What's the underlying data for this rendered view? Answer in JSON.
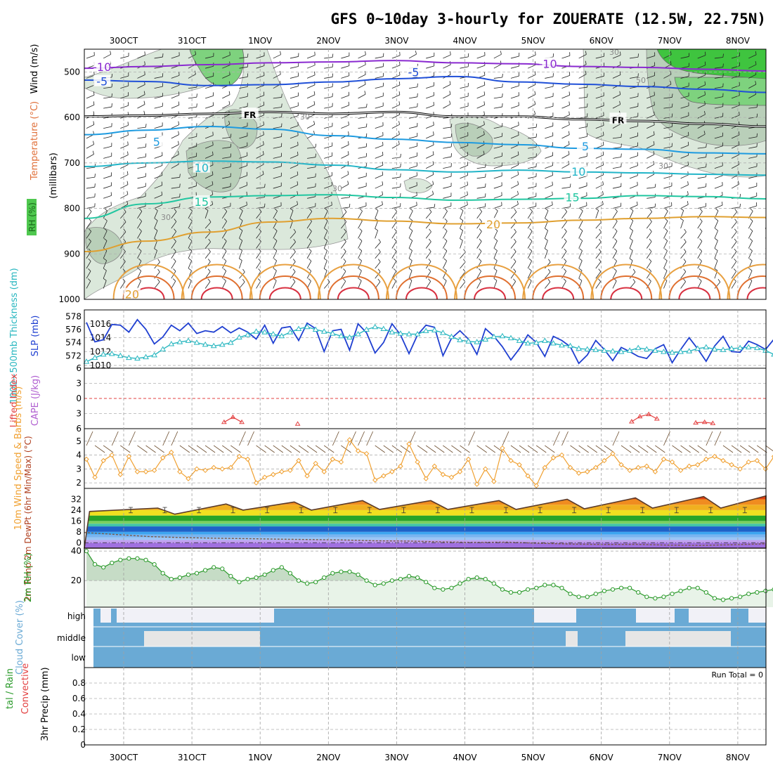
{
  "page": {
    "title": "GFS 0~10day 3-hourly for ZOUERATE (12.5W, 22.75N)",
    "date_labels": [
      "30OCT",
      "31OCT",
      "1NOV",
      "2NOV",
      "3NOV",
      "4NOV",
      "5NOV",
      "6NOV",
      "7NOV",
      "8NOV"
    ]
  },
  "colors": {
    "rh_fill": "#c6dcc6",
    "rh_dark": "#8fb08f",
    "rh_bright": "#5ccd5c",
    "slp": "#1f3fd1",
    "thickness": "#29b7c0",
    "lifted_index": "#e34040",
    "cape": "#b05fd0",
    "wind10": "#f0a030",
    "rh2m": "#2a9a2a",
    "cloud": "#6aaad5",
    "grid": "#a0a0a0"
  },
  "chart_data": [
    {
      "id": "upper_air",
      "type": "contour",
      "ylabel_parts": [
        "RH (%)",
        "Temperature (°C)",
        "Wind (m/s)"
      ],
      "ylabel_right": "(millibars)",
      "y_ticks": [
        500,
        600,
        700,
        800,
        900,
        1000
      ],
      "ylim": [
        1000,
        450
      ],
      "temperature_isotherms": [
        {
          "label": "-10",
          "levels": [
            492,
            488,
            484,
            480,
            478,
            475,
            480,
            482,
            488,
            490,
            494,
            498
          ]
        },
        {
          "label": "-5",
          "levels": [
            518,
            521,
            530,
            528,
            522,
            515,
            510,
            522,
            527,
            532,
            538,
            545
          ]
        },
        {
          "label": "FR",
          "levels": [
            598,
            596,
            592,
            588,
            592,
            588,
            598,
            598,
            604,
            608,
            614,
            620
          ]
        },
        {
          "label": "5",
          "levels": [
            638,
            628,
            620,
            626,
            640,
            648,
            655,
            660,
            668,
            670,
            678,
            680
          ]
        },
        {
          "label": "10",
          "levels": [
            708,
            700,
            696,
            698,
            705,
            715,
            720,
            716,
            720,
            722,
            725,
            727
          ]
        },
        {
          "label": "15",
          "levels": [
            822,
            790,
            775,
            772,
            770,
            776,
            782,
            780,
            778,
            772,
            774,
            779
          ]
        },
        {
          "label": "20",
          "levels": [
            895,
            872,
            852,
            830,
            822,
            828,
            834,
            832,
            826,
            822,
            818,
            820
          ]
        }
      ],
      "isotherm_labels": [
        {
          "text": "-10",
          "pos": [
            2.6,
            490
          ]
        },
        {
          "text": "-5",
          "pos": [
            2.6,
            522
          ]
        },
        {
          "text": "-5",
          "pos": [
            48.3,
            502
          ]
        },
        {
          "text": "-10",
          "pos": [
            68.0,
            483
          ]
        },
        {
          "text": "FR",
          "pos": [
            24.3,
            594
          ]
        },
        {
          "text": "FR",
          "pos": [
            78.3,
            605
          ]
        },
        {
          "text": "5",
          "pos": [
            10.6,
            655
          ]
        },
        {
          "text": "5",
          "pos": [
            73.5,
            665
          ]
        },
        {
          "text": "10",
          "pos": [
            17.2,
            712
          ]
        },
        {
          "text": "10",
          "pos": [
            72.5,
            720
          ]
        },
        {
          "text": "15",
          "pos": [
            17.2,
            787
          ]
        },
        {
          "text": "15",
          "pos": [
            71.6,
            777
          ]
        },
        {
          "text": "20",
          "pos": [
            7.0,
            990
          ]
        },
        {
          "text": "20",
          "pos": [
            60.0,
            836
          ]
        }
      ],
      "rh_contour_labels": [
        "30",
        "30",
        "30",
        "50",
        "30",
        "30"
      ]
    },
    {
      "id": "slp_thickness",
      "type": "line",
      "ylabel_left": "1000~500mb Thickness (dm)",
      "ylabel_right": "SLP (mb)",
      "y_ticks_left": [
        572,
        574,
        576,
        578
      ],
      "y_ticks_right": [
        1010,
        1012,
        1014,
        1016
      ],
      "ylim_slp": [
        1009.6,
        1018
      ],
      "series": [
        {
          "name": "SLP",
          "unit": "mb",
          "values": [
            1016.2,
            1013.4,
            1013.7,
            1015.9,
            1015.8,
            1014.8,
            1016.6,
            1015.2,
            1013.1,
            1014.1,
            1015.8,
            1015.0,
            1016.1,
            1014.6,
            1015.0,
            1014.8,
            1015.6,
            1014.7,
            1015.4,
            1014.8,
            1013.8,
            1015.8,
            1013.2,
            1015.4,
            1015.6,
            1013.6,
            1016.1,
            1015.3,
            1012.0,
            1015.0,
            1015.2,
            1012.2,
            1016.0,
            1014.7,
            1011.8,
            1013.3,
            1016.0,
            1014.4,
            1011.7,
            1014.4,
            1015.8,
            1015.5,
            1011.4,
            1013.9,
            1015.0,
            1013.8,
            1011.6,
            1015.3,
            1014.2,
            1012.7,
            1010.8,
            1012.4,
            1014.4,
            1013.3,
            1011.3,
            1014.2,
            1013.6,
            1012.7,
            1010.3,
            1011.5,
            1013.6,
            1012.3,
            1010.7,
            1012.6,
            1012.0,
            1011.3,
            1011.0,
            1012.4,
            1013.0,
            1010.4,
            1012.3,
            1014.0,
            1012.4,
            1010.6,
            1012.8,
            1014.2,
            1012.0,
            1011.9,
            1013.5,
            1013.0,
            1012.3,
            1013.8
          ]
        },
        {
          "name": "Thickness",
          "unit": "dm",
          "values": [
            571.1,
            571.7,
            572.2,
            572.3,
            572.0,
            571.7,
            571.6,
            571.8,
            572.1,
            573.0,
            573.8,
            574.1,
            574.3,
            574.0,
            573.7,
            573.5,
            573.7,
            574.0,
            574.8,
            575.2,
            575.7,
            575.6,
            575.3,
            575.0,
            575.6,
            576.1,
            576.4,
            576.0,
            575.7,
            575.4,
            575.0,
            574.8,
            575.3,
            576.0,
            576.4,
            576.1,
            575.6,
            575.4,
            575.3,
            575.3,
            575.8,
            575.9,
            575.5,
            574.9,
            574.4,
            574.2,
            574.1,
            574.5,
            574.9,
            575.0,
            574.7,
            574.3,
            573.9,
            574.0,
            574.3,
            573.9,
            573.6,
            573.5,
            573.1,
            573.0,
            572.9,
            572.8,
            572.7,
            572.6,
            572.8,
            573.2,
            573.0,
            572.8,
            572.6,
            572.5,
            572.6,
            572.7,
            573.1,
            573.3,
            573.0,
            572.9,
            573.1,
            573.2,
            573.3,
            573.2,
            572.8,
            572.2
          ]
        }
      ]
    },
    {
      "id": "li_cape",
      "type": "line",
      "ylabel_left": "Lifted Index",
      "ylabel_right": "CAPE (J/kg)",
      "y_ticks": [
        "6",
        "3",
        "0",
        "3",
        "6"
      ],
      "ylim": [
        6,
        -6
      ],
      "zero_line": 0,
      "series": [
        {
          "name": "Lifted Index",
          "segments": [
            {
              "x": [
                20.5,
                21.8,
                23.1
              ],
              "y": [
                -5.6,
                -4.7,
                -5.6
              ]
            },
            {
              "x": [
                31.3
              ],
              "y": [
                -5.9
              ]
            },
            {
              "x": [
                80.3,
                81.5,
                82.8,
                84.0
              ],
              "y": [
                -5.5,
                -4.6,
                -4.2,
                -5.0
              ]
            },
            {
              "x": [
                89.7,
                91.0,
                92.2
              ],
              "y": [
                -5.7,
                -5.6,
                -5.8
              ]
            }
          ]
        }
      ]
    },
    {
      "id": "wind10m",
      "type": "line",
      "ylabel": "10m Wind Speed & Barbs (m/s)",
      "y_ticks": [
        2,
        3,
        4,
        5
      ],
      "ylim": [
        1.6,
        5.9
      ],
      "series": [
        {
          "name": "10m Wind Speed",
          "values": [
            3.7,
            2.4,
            3.6,
            4.0,
            2.6,
            3.9,
            2.8,
            2.8,
            2.9,
            3.8,
            4.2,
            2.8,
            2.3,
            3.0,
            2.9,
            3.1,
            3.0,
            3.1,
            3.9,
            3.7,
            2.0,
            2.4,
            2.6,
            2.8,
            2.9,
            3.6,
            2.5,
            3.4,
            2.8,
            3.7,
            3.5,
            5.1,
            4.3,
            4.1,
            2.2,
            2.5,
            2.8,
            3.2,
            4.8,
            3.5,
            2.3,
            3.2,
            2.6,
            2.4,
            2.8,
            3.7,
            1.9,
            3.0,
            2.1,
            4.5,
            3.6,
            3.3,
            2.5,
            1.8,
            3.1,
            3.8,
            4.0,
            3.1,
            2.7,
            2.8,
            3.1,
            3.6,
            4.1,
            3.3,
            2.9,
            3.1,
            3.2,
            2.8,
            3.7,
            3.5,
            2.9,
            3.2,
            3.3,
            3.7,
            3.9,
            3.6,
            3.3,
            3.0,
            3.5,
            3.6,
            3.0,
            3.9
          ]
        }
      ]
    },
    {
      "id": "temp2m",
      "type": "area",
      "ylabel": "2m Temp 2m DewPt (6hr Min/Max) (°C)",
      "y_ticks": [
        0,
        8,
        16,
        24,
        32
      ],
      "ylim": [
        -4,
        40
      ],
      "series": [
        {
          "name": "2m Temp",
          "x_days": [
            -0.5,
            0.5,
            0.75,
            1.5,
            1.75,
            2.5,
            2.75,
            3.5,
            3.75,
            4.5,
            4.75,
            5.5,
            5.75,
            6.5,
            6.75,
            7.5,
            7.75,
            8.5,
            8.75,
            9.5,
            9.75,
            10.0
          ],
          "values": [
            23,
            25.5,
            21,
            28.5,
            24,
            30,
            24,
            31,
            24.5,
            31,
            24.5,
            31,
            24.5,
            32,
            25,
            33,
            25.5,
            34,
            25.5,
            34.5,
            25.5,
            26
          ]
        },
        {
          "name": "2m DewPt",
          "values": [
            7.5,
            6.0,
            4.5,
            3.8,
            3.3,
            3.0,
            2.6,
            2.3,
            2.0,
            1.4,
            1.2,
            0.6,
            0.2,
            0.4,
            -0.4,
            -1.0,
            -1.3,
            -1.2,
            -1.8,
            -2.0,
            -1.5,
            -0.8
          ]
        }
      ],
      "band_colors": [
        "#a070e0",
        "#c1a0f0",
        "#7ab4f0",
        "#1e62c8",
        "#3da5f0",
        "#40c4a8",
        "#7cd060",
        "#28a428",
        "#f0e020",
        "#f08c20",
        "#e04010"
      ]
    },
    {
      "id": "rh2m",
      "type": "area",
      "ylabel": "2m RH (%)",
      "y_ticks": [
        20,
        40
      ],
      "ylim": [
        2,
        42
      ],
      "series": [
        {
          "name": "2m RH",
          "values": [
            40,
            31,
            29,
            32,
            34,
            35,
            35,
            34,
            31,
            25,
            21,
            22,
            24,
            25,
            27,
            29,
            28,
            23,
            19,
            21,
            22,
            24,
            27,
            29,
            25,
            20,
            18,
            19,
            22,
            25,
            26,
            26,
            24,
            20,
            17,
            18,
            20,
            21,
            23,
            22,
            19,
            15,
            14,
            15,
            18,
            21,
            22,
            21,
            18,
            14,
            12,
            12,
            14,
            15,
            17,
            17,
            15,
            11,
            9,
            9,
            11,
            13,
            14,
            15,
            15,
            12,
            9,
            8,
            9,
            11,
            13,
            15,
            15,
            12,
            8,
            7,
            8,
            9,
            11,
            12,
            13,
            14
          ]
        }
      ]
    },
    {
      "id": "cloud_cover",
      "type": "bar",
      "ylabel": "Cloud Cover (%)",
      "layers": [
        "high",
        "middle",
        "low"
      ]
    },
    {
      "id": "precip",
      "type": "bar",
      "ylabel_left": [
        "tal / Rain",
        "Convective"
      ],
      "ylabel": "3hr Precip (mm)",
      "y_ticks": [
        "0",
        "0.2",
        "0.4",
        "0.6",
        "0.8"
      ],
      "ylim": [
        0,
        1.0
      ],
      "run_total_label": "Run Total = 0",
      "values": []
    }
  ]
}
